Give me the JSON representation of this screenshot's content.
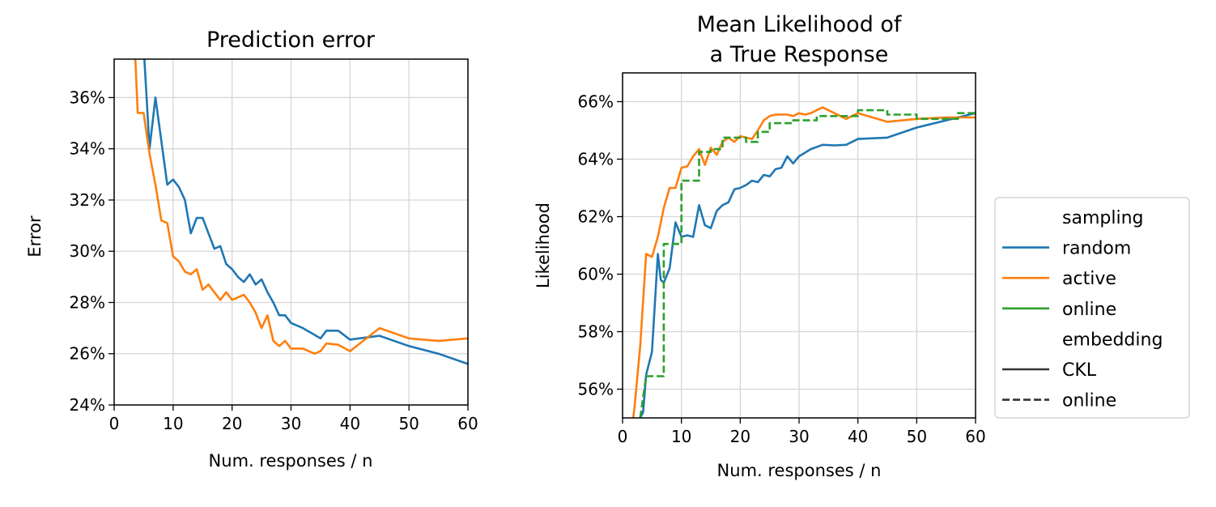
{
  "chart_data": [
    {
      "type": "line",
      "title": "Prediction error",
      "xlabel": "Num. responses / n",
      "ylabel": "Error",
      "xlim": [
        0,
        60
      ],
      "ylim": [
        24,
        37.5
      ],
      "x_ticks": [
        "0",
        "10",
        "20",
        "30",
        "40",
        "50",
        "60"
      ],
      "y_ticks": [
        "24%",
        "26%",
        "28%",
        "30%",
        "32%",
        "34%",
        "36%"
      ],
      "grid": true,
      "series": [
        {
          "name": "random",
          "color": "#1f77b4",
          "dash": "solid",
          "x": [
            5,
            5.5,
            6,
            7,
            8,
            9,
            10,
            11,
            12,
            13,
            14,
            15,
            16,
            17,
            18,
            19,
            20,
            21,
            22,
            23,
            24,
            25,
            26,
            27,
            28,
            29,
            30,
            32,
            35,
            36,
            38,
            40,
            45,
            50,
            55,
            60
          ],
          "y": [
            38,
            36,
            34,
            36,
            34.3,
            32.6,
            32.8,
            32.5,
            32,
            30.7,
            31.3,
            31.3,
            30.7,
            30.1,
            30.2,
            29.5,
            29.3,
            29,
            28.8,
            29.1,
            28.7,
            28.9,
            28.4,
            28,
            27.5,
            27.5,
            27.2,
            27,
            26.6,
            26.9,
            26.9,
            26.55,
            26.7,
            26.3,
            26,
            25.6
          ]
        },
        {
          "name": "active",
          "color": "#ff7f0e",
          "dash": "solid",
          "x": [
            3.5,
            4,
            5,
            6,
            7,
            8,
            9,
            10,
            11,
            12,
            13,
            14,
            15,
            16,
            17,
            18,
            19,
            20,
            21,
            22,
            23,
            24,
            25,
            26,
            27,
            28,
            29,
            30,
            31,
            32,
            34,
            35,
            36,
            38,
            40,
            45,
            50,
            55,
            60
          ],
          "y": [
            38,
            35.4,
            35.4,
            33.8,
            32.6,
            31.2,
            31.1,
            29.8,
            29.6,
            29.2,
            29.1,
            29.3,
            28.5,
            28.7,
            28.4,
            28.1,
            28.4,
            28.1,
            28.2,
            28.3,
            28,
            27.6,
            27,
            27.5,
            26.5,
            26.3,
            26.5,
            26.2,
            26.2,
            26.2,
            26,
            26.1,
            26.4,
            26.35,
            26.1,
            27,
            26.6,
            26.5,
            26.6
          ]
        }
      ]
    },
    {
      "type": "line",
      "title": [
        "Mean Likelihood of",
        "a True Response"
      ],
      "xlabel": "Num. responses / n",
      "ylabel": "Likelihood",
      "xlim": [
        0,
        60
      ],
      "ylim": [
        55,
        67
      ],
      "x_ticks": [
        "0",
        "10",
        "20",
        "30",
        "40",
        "50",
        "60"
      ],
      "y_ticks": [
        "56%",
        "58%",
        "60%",
        "62%",
        "64%",
        "66%"
      ],
      "grid": true,
      "legend": {
        "placement": "outside-right",
        "entries": [
          {
            "label": "sampling",
            "kind": "header"
          },
          {
            "label": "random",
            "color": "#1f77b4",
            "dash": "solid"
          },
          {
            "label": "active",
            "color": "#ff7f0e",
            "dash": "solid"
          },
          {
            "label": "online",
            "color": "#2ca02c",
            "dash": "solid"
          },
          {
            "label": "embedding",
            "kind": "header"
          },
          {
            "label": "CKL",
            "color": "#333333",
            "dash": "solid"
          },
          {
            "label": "online",
            "color": "#333333",
            "dash": "dashed"
          }
        ]
      },
      "series": [
        {
          "name": "random",
          "color": "#1f77b4",
          "dash": "solid",
          "x": [
            2.8,
            3,
            3.5,
            4,
            5,
            6,
            6.5,
            7,
            8,
            9,
            10,
            11,
            12,
            13,
            14,
            15,
            16,
            17,
            18,
            19,
            20,
            21,
            22,
            23,
            24,
            25,
            26,
            27,
            28,
            29,
            30,
            32,
            34,
            36,
            38,
            40,
            45,
            50,
            55,
            60
          ],
          "y": [
            55,
            55,
            55.2,
            56.5,
            57.3,
            60.7,
            59.8,
            59.7,
            60.2,
            61.8,
            61.3,
            61.35,
            61.3,
            62.4,
            61.7,
            61.6,
            62.2,
            62.4,
            62.5,
            62.95,
            63,
            63.1,
            63.25,
            63.2,
            63.45,
            63.4,
            63.65,
            63.7,
            64.1,
            63.85,
            64.1,
            64.35,
            64.5,
            64.48,
            64.5,
            64.7,
            64.75,
            65.1,
            65.35,
            65.6
          ]
        },
        {
          "name": "active",
          "color": "#ff7f0e",
          "dash": "solid",
          "x": [
            1.8,
            2,
            3,
            4,
            5,
            6,
            7,
            8,
            9,
            10,
            11,
            12,
            13,
            14,
            15,
            16,
            17,
            18,
            19,
            20,
            21,
            22,
            23,
            24,
            25,
            26,
            27,
            28,
            29,
            30,
            31,
            32,
            34,
            35,
            36,
            38,
            40,
            45,
            50,
            55,
            60
          ],
          "y": [
            55,
            55.3,
            57.5,
            60.7,
            60.6,
            61.3,
            62.3,
            63,
            63,
            63.7,
            63.75,
            64.1,
            64.35,
            63.8,
            64.4,
            64.15,
            64.6,
            64.75,
            64.6,
            64.8,
            64.75,
            64.7,
            65,
            65.35,
            65.5,
            65.55,
            65.55,
            65.55,
            65.5,
            65.6,
            65.55,
            65.6,
            65.8,
            65.7,
            65.6,
            65.4,
            65.6,
            65.3,
            65.4,
            65.45,
            65.45
          ]
        },
        {
          "name": "online",
          "color": "#2ca02c",
          "dash": "dashed",
          "x": [
            3,
            4,
            4,
            7,
            7,
            8,
            8,
            10,
            10,
            13,
            13,
            15,
            15,
            17,
            17,
            21,
            21,
            23,
            23,
            25,
            25,
            29,
            29,
            33,
            33,
            40,
            40,
            45,
            45,
            50,
            50,
            57,
            57,
            60
          ],
          "y": [
            55,
            56.45,
            56.45,
            56.45,
            61.05,
            61.05,
            61.05,
            61.05,
            63.25,
            63.25,
            64.25,
            64.25,
            64.35,
            64.35,
            64.75,
            64.75,
            64.6,
            64.6,
            64.95,
            64.95,
            65.25,
            65.25,
            65.35,
            65.35,
            65.5,
            65.5,
            65.7,
            65.7,
            65.55,
            65.55,
            65.4,
            65.4,
            65.6,
            65.6
          ]
        }
      ]
    }
  ]
}
